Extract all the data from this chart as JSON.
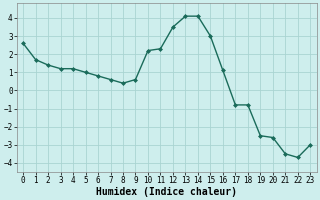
{
  "x": [
    0,
    1,
    2,
    3,
    4,
    5,
    6,
    7,
    8,
    9,
    10,
    11,
    12,
    13,
    14,
    15,
    16,
    17,
    18,
    19,
    20,
    21,
    22,
    23
  ],
  "y": [
    2.6,
    1.7,
    1.4,
    1.2,
    1.2,
    1.0,
    0.8,
    0.6,
    0.4,
    0.6,
    2.2,
    2.3,
    3.5,
    4.1,
    4.1,
    3.0,
    1.1,
    -0.8,
    -0.8,
    -2.5,
    -2.6,
    -3.5,
    -3.7,
    -3.0
  ],
  "line_color": "#1a6b5a",
  "marker": "D",
  "marker_size": 2.0,
  "linewidth": 1.0,
  "background_color": "#ceeeed",
  "grid_color": "#aad4d2",
  "xlabel": "Humidex (Indice chaleur)",
  "xlabel_fontsize": 7,
  "xlabel_fontweight": "bold",
  "ylim": [
    -4.5,
    4.8
  ],
  "xlim": [
    -0.5,
    23.5
  ],
  "yticks": [
    -4,
    -3,
    -2,
    -1,
    0,
    1,
    2,
    3,
    4
  ],
  "xticks": [
    0,
    1,
    2,
    3,
    4,
    5,
    6,
    7,
    8,
    9,
    10,
    11,
    12,
    13,
    14,
    15,
    16,
    17,
    18,
    19,
    20,
    21,
    22,
    23
  ],
  "tick_fontsize": 5.5,
  "spine_color": "#888888"
}
